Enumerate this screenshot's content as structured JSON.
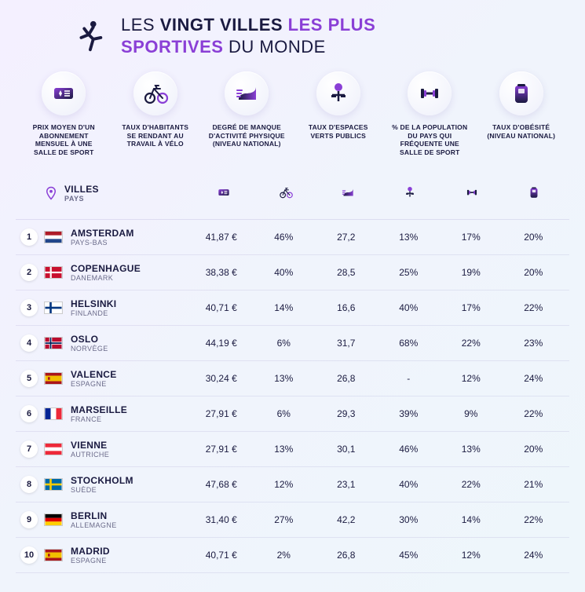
{
  "title": {
    "line1_a": "LES ",
    "line1_b": "VINGT VILLES ",
    "line1_c": "LES PLUS",
    "line2_a": "SPORTIVES",
    "line2_b": " DU MONDE"
  },
  "colors": {
    "accent": "#8a3fd6",
    "dark": "#1a1a40"
  },
  "metrics": [
    {
      "label": "PRIX MOYEN D'UN\nABONNEMENT\nMENSUEL À UNE\nSALLE DE SPORT"
    },
    {
      "label": "TAUX D'HABITANTS\nSE RENDANT AU\nTRAVAIL À VÉLO"
    },
    {
      "label": "DEGRÉ DE MANQUE\nD'ACTIVITÉ PHYSIQUE\n(NIVEAU NATIONAL)"
    },
    {
      "label": "TAUX D'ESPACES\nVERTS PUBLICS"
    },
    {
      "label": "% DE LA POPULATION\nDU PAYS QUI\nFRÉQUENTE UNE\nSALLE DE SPORT"
    },
    {
      "label": "TAUX D'OBÉSITÉ\n(NIVEAU NATIONAL)"
    }
  ],
  "header": {
    "villes": "VILLES",
    "pays": "PAYS"
  },
  "rows": [
    {
      "rank": "1",
      "city": "AMSTERDAM",
      "country": "PAYS-BAS",
      "flag": "nl",
      "values": [
        "41,87 €",
        "46%",
        "27,2",
        "13%",
        "17%",
        "20%"
      ]
    },
    {
      "rank": "2",
      "city": "COPENHAGUE",
      "country": "DANEMARK",
      "flag": "dk",
      "values": [
        "38,38 €",
        "40%",
        "28,5",
        "25%",
        "19%",
        "20%"
      ]
    },
    {
      "rank": "3",
      "city": "HELSINKI",
      "country": "FINLANDE",
      "flag": "fi",
      "values": [
        "40,71 €",
        "14%",
        "16,6",
        "40%",
        "17%",
        "22%"
      ]
    },
    {
      "rank": "4",
      "city": "OSLO",
      "country": "NORVÈGE",
      "flag": "no",
      "values": [
        "44,19 €",
        "6%",
        "31,7",
        "68%",
        "22%",
        "23%"
      ]
    },
    {
      "rank": "5",
      "city": "VALENCE",
      "country": "ESPAGNE",
      "flag": "es",
      "values": [
        "30,24 €",
        "13%",
        "26,8",
        "-",
        "12%",
        "24%"
      ]
    },
    {
      "rank": "6",
      "city": "MARSEILLE",
      "country": "FRANCE",
      "flag": "fr",
      "values": [
        "27,91 €",
        "6%",
        "29,3",
        "39%",
        "9%",
        "22%"
      ]
    },
    {
      "rank": "7",
      "city": "VIENNE",
      "country": "AUTRICHE",
      "flag": "at",
      "values": [
        "27,91 €",
        "13%",
        "30,1",
        "46%",
        "13%",
        "20%"
      ]
    },
    {
      "rank": "8",
      "city": "STOCKHOLM",
      "country": "SUÈDE",
      "flag": "se",
      "values": [
        "47,68 €",
        "12%",
        "23,1",
        "40%",
        "22%",
        "21%"
      ]
    },
    {
      "rank": "9",
      "city": "BERLIN",
      "country": "ALLEMAGNE",
      "flag": "de",
      "values": [
        "31,40 €",
        "27%",
        "42,2",
        "30%",
        "14%",
        "22%"
      ]
    },
    {
      "rank": "10",
      "city": "MADRID",
      "country": "ESPAGNE",
      "flag": "es",
      "values": [
        "40,71 €",
        "2%",
        "26,8",
        "45%",
        "12%",
        "24%"
      ]
    }
  ]
}
